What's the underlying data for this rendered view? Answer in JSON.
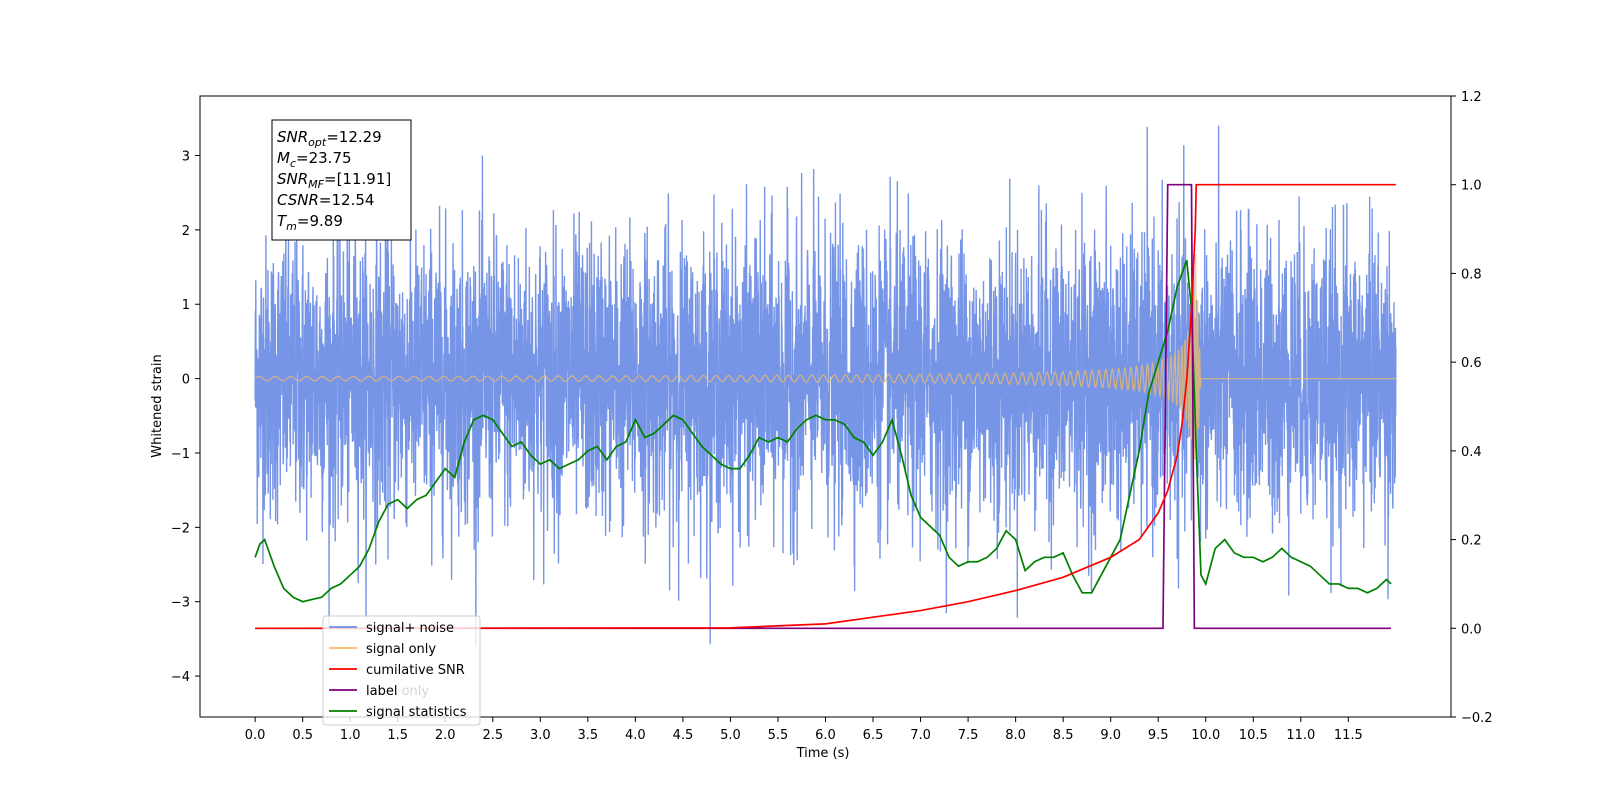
{
  "chart_data": {
    "type": "line",
    "xlabel": "Time (s)",
    "ylabel": "Whitened strain",
    "xlim": [
      -0.58,
      12.58
    ],
    "ylim": [
      -4.55,
      3.8
    ],
    "ylim_right": [
      -0.2,
      1.2
    ],
    "xticks": [
      "0.0",
      "0.5",
      "1.0",
      "1.5",
      "2.0",
      "2.5",
      "3.0",
      "3.5",
      "4.0",
      "4.5",
      "5.0",
      "5.5",
      "6.0",
      "6.5",
      "7.0",
      "7.5",
      "8.0",
      "8.5",
      "9.0",
      "9.5",
      "10.0",
      "10.5",
      "11.0",
      "11.5"
    ],
    "yticks_left": [
      "3",
      "2",
      "1",
      "0",
      "−1",
      "−2",
      "−3",
      "−4"
    ],
    "yticks_right": [
      "1.2",
      "1.0",
      "0.8",
      "0.6",
      "0.4",
      "0.2",
      "0.0",
      "−0.2"
    ],
    "grid": false,
    "legend_position": "lower-left",
    "annotation": {
      "lines": [
        {
          "name": "SNR",
          "sub": "opt",
          "value": "=12.29"
        },
        {
          "name": "M",
          "sub": "c",
          "value": "=23.75"
        },
        {
          "name": "SNR",
          "sub": "MF",
          "value": "=[11.91]"
        },
        {
          "name": "CSNR",
          "sub": "",
          "value": "=12.54"
        },
        {
          "name": "T",
          "sub": "m",
          "value": "=9.89"
        }
      ]
    },
    "legend": [
      {
        "label": "signal+ noise",
        "color": "#6f8fe6"
      },
      {
        "label": "signal only",
        "color": "#f6bd60"
      },
      {
        "label": "cumilative SNR",
        "color": "#ff0000"
      },
      {
        "label": "label",
        "color": "#800080"
      },
      {
        "label": "signal statistics",
        "color": "#008000"
      }
    ],
    "legend_hidden_label": "label only",
    "series": [
      {
        "name": "signal+ noise",
        "axis": "left",
        "color": "#6f8fe6",
        "x_range": [
          0.0,
          12.0
        ],
        "noise_sigma": 0.95,
        "noise_max": 3.4,
        "noise_min": -3.6,
        "description_values": "dense noise between about -3.6 and 3.4"
      },
      {
        "name": "signal only",
        "axis": "left",
        "color": "#f6bd60",
        "chirp": {
          "start": 0.0,
          "merger": 9.89,
          "end": 12.0,
          "peak_amplitude": 1.8
        }
      },
      {
        "name": "cumilative SNR",
        "axis": "right",
        "color": "#ff0000",
        "points": [
          [
            0,
            0
          ],
          [
            5.0,
            0.001
          ],
          [
            6.0,
            0.01
          ],
          [
            7.0,
            0.04
          ],
          [
            7.5,
            0.06
          ],
          [
            8.0,
            0.085
          ],
          [
            8.5,
            0.115
          ],
          [
            9.0,
            0.16
          ],
          [
            9.3,
            0.2
          ],
          [
            9.5,
            0.26
          ],
          [
            9.6,
            0.31
          ],
          [
            9.7,
            0.39
          ],
          [
            9.75,
            0.46
          ],
          [
            9.8,
            0.56
          ],
          [
            9.85,
            0.72
          ],
          [
            9.89,
            0.9
          ],
          [
            9.9,
            1.0
          ],
          [
            12.0,
            1.0
          ]
        ]
      },
      {
        "name": "label",
        "axis": "right",
        "color": "#800080",
        "points": [
          [
            0,
            0
          ],
          [
            9.55,
            0
          ],
          [
            9.6,
            1.0
          ],
          [
            9.85,
            1.0
          ],
          [
            9.88,
            0
          ],
          [
            11.95,
            0
          ]
        ]
      },
      {
        "name": "signal statistics",
        "axis": "right",
        "color": "#008000",
        "points": [
          [
            0,
            0.16
          ],
          [
            0.05,
            0.19
          ],
          [
            0.1,
            0.2
          ],
          [
            0.15,
            0.17
          ],
          [
            0.2,
            0.14
          ],
          [
            0.3,
            0.09
          ],
          [
            0.4,
            0.07
          ],
          [
            0.5,
            0.06
          ],
          [
            0.6,
            0.065
          ],
          [
            0.7,
            0.07
          ],
          [
            0.8,
            0.09
          ],
          [
            0.9,
            0.1
          ],
          [
            1.0,
            0.12
          ],
          [
            1.1,
            0.14
          ],
          [
            1.2,
            0.18
          ],
          [
            1.3,
            0.24
          ],
          [
            1.4,
            0.28
          ],
          [
            1.5,
            0.29
          ],
          [
            1.6,
            0.27
          ],
          [
            1.7,
            0.29
          ],
          [
            1.8,
            0.3
          ],
          [
            1.9,
            0.33
          ],
          [
            2.0,
            0.36
          ],
          [
            2.1,
            0.34
          ],
          [
            2.2,
            0.42
          ],
          [
            2.3,
            0.47
          ],
          [
            2.4,
            0.48
          ],
          [
            2.5,
            0.47
          ],
          [
            2.6,
            0.44
          ],
          [
            2.7,
            0.41
          ],
          [
            2.8,
            0.42
          ],
          [
            2.9,
            0.39
          ],
          [
            3.0,
            0.37
          ],
          [
            3.1,
            0.38
          ],
          [
            3.2,
            0.36
          ],
          [
            3.3,
            0.37
          ],
          [
            3.4,
            0.38
          ],
          [
            3.5,
            0.4
          ],
          [
            3.6,
            0.41
          ],
          [
            3.7,
            0.38
          ],
          [
            3.8,
            0.41
          ],
          [
            3.9,
            0.42
          ],
          [
            4.0,
            0.47
          ],
          [
            4.1,
            0.43
          ],
          [
            4.2,
            0.44
          ],
          [
            4.3,
            0.46
          ],
          [
            4.4,
            0.48
          ],
          [
            4.5,
            0.47
          ],
          [
            4.6,
            0.44
          ],
          [
            4.7,
            0.41
          ],
          [
            4.8,
            0.39
          ],
          [
            4.9,
            0.37
          ],
          [
            5.0,
            0.36
          ],
          [
            5.1,
            0.36
          ],
          [
            5.2,
            0.39
          ],
          [
            5.3,
            0.43
          ],
          [
            5.4,
            0.42
          ],
          [
            5.5,
            0.43
          ],
          [
            5.6,
            0.42
          ],
          [
            5.7,
            0.45
          ],
          [
            5.8,
            0.47
          ],
          [
            5.9,
            0.48
          ],
          [
            6.0,
            0.47
          ],
          [
            6.1,
            0.47
          ],
          [
            6.2,
            0.46
          ],
          [
            6.3,
            0.43
          ],
          [
            6.4,
            0.42
          ],
          [
            6.5,
            0.39
          ],
          [
            6.6,
            0.42
          ],
          [
            6.7,
            0.47
          ],
          [
            6.8,
            0.39
          ],
          [
            6.9,
            0.3
          ],
          [
            7.0,
            0.25
          ],
          [
            7.1,
            0.23
          ],
          [
            7.2,
            0.21
          ],
          [
            7.3,
            0.16
          ],
          [
            7.4,
            0.14
          ],
          [
            7.5,
            0.15
          ],
          [
            7.6,
            0.15
          ],
          [
            7.7,
            0.16
          ],
          [
            7.8,
            0.18
          ],
          [
            7.9,
            0.22
          ],
          [
            8.0,
            0.2
          ],
          [
            8.1,
            0.13
          ],
          [
            8.2,
            0.15
          ],
          [
            8.3,
            0.16
          ],
          [
            8.4,
            0.16
          ],
          [
            8.5,
            0.17
          ],
          [
            8.6,
            0.12
          ],
          [
            8.7,
            0.08
          ],
          [
            8.8,
            0.08
          ],
          [
            8.9,
            0.12
          ],
          [
            9.0,
            0.16
          ],
          [
            9.1,
            0.2
          ],
          [
            9.2,
            0.3
          ],
          [
            9.3,
            0.4
          ],
          [
            9.4,
            0.53
          ],
          [
            9.5,
            0.6
          ],
          [
            9.6,
            0.67
          ],
          [
            9.7,
            0.77
          ],
          [
            9.75,
            0.8
          ],
          [
            9.8,
            0.83
          ],
          [
            9.85,
            0.72
          ],
          [
            9.9,
            0.4
          ],
          [
            9.95,
            0.12
          ],
          [
            10.0,
            0.1
          ],
          [
            10.1,
            0.18
          ],
          [
            10.2,
            0.2
          ],
          [
            10.3,
            0.17
          ],
          [
            10.4,
            0.16
          ],
          [
            10.5,
            0.16
          ],
          [
            10.6,
            0.15
          ],
          [
            10.7,
            0.16
          ],
          [
            10.8,
            0.18
          ],
          [
            10.9,
            0.16
          ],
          [
            11.0,
            0.15
          ],
          [
            11.1,
            0.14
          ],
          [
            11.2,
            0.12
          ],
          [
            11.3,
            0.1
          ],
          [
            11.4,
            0.1
          ],
          [
            11.5,
            0.09
          ],
          [
            11.6,
            0.09
          ],
          [
            11.7,
            0.08
          ],
          [
            11.8,
            0.09
          ],
          [
            11.9,
            0.11
          ],
          [
            11.95,
            0.1
          ]
        ]
      }
    ]
  }
}
